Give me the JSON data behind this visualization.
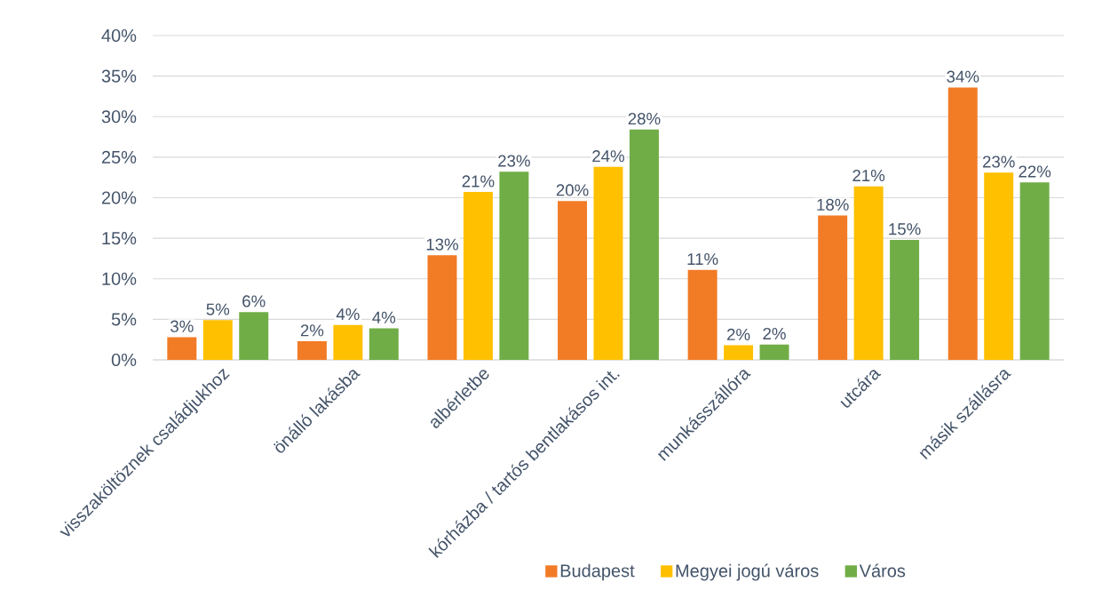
{
  "chart_data": {
    "type": "bar",
    "categories": [
      "visszaköltöznek családjukhoz",
      "önálló lakásba",
      "albérletbe",
      "kórházba / tartós bentlakásos int.",
      "munkásszállóra",
      "utcára",
      "másik szállásra"
    ],
    "series": [
      {
        "name": "Budapest",
        "color": "#f27b26",
        "values": [
          2.8,
          2.3,
          12.9,
          19.6,
          11.1,
          17.8,
          33.6
        ],
        "value_labels": [
          "3%",
          "2%",
          "13%",
          "20%",
          "11%",
          "18%",
          "34%"
        ]
      },
      {
        "name": "Megyei jogú város",
        "color": "#ffc000",
        "values": [
          4.9,
          4.3,
          20.7,
          23.8,
          1.8,
          21.4,
          23.1
        ],
        "value_labels": [
          "5%",
          "4%",
          "21%",
          "24%",
          "2%",
          "21%",
          "23%"
        ]
      },
      {
        "name": "Város",
        "color": "#70ad47",
        "values": [
          5.9,
          3.9,
          23.2,
          28.4,
          1.9,
          14.8,
          21.9
        ],
        "value_labels": [
          "6%",
          "4%",
          "23%",
          "28%",
          "2%",
          "15%",
          "22%"
        ]
      }
    ],
    "ylim": [
      0,
      40
    ],
    "yticks": [
      {
        "value": 0,
        "label": "0%"
      },
      {
        "value": 5,
        "label": "5%"
      },
      {
        "value": 10,
        "label": "10%"
      },
      {
        "value": 15,
        "label": "15%"
      },
      {
        "value": 20,
        "label": "20%"
      },
      {
        "value": 25,
        "label": "25%"
      },
      {
        "value": 30,
        "label": "30%"
      },
      {
        "value": 35,
        "label": "35%"
      },
      {
        "value": 40,
        "label": "40%"
      }
    ],
    "grid": "y",
    "legend": "bottom"
  }
}
